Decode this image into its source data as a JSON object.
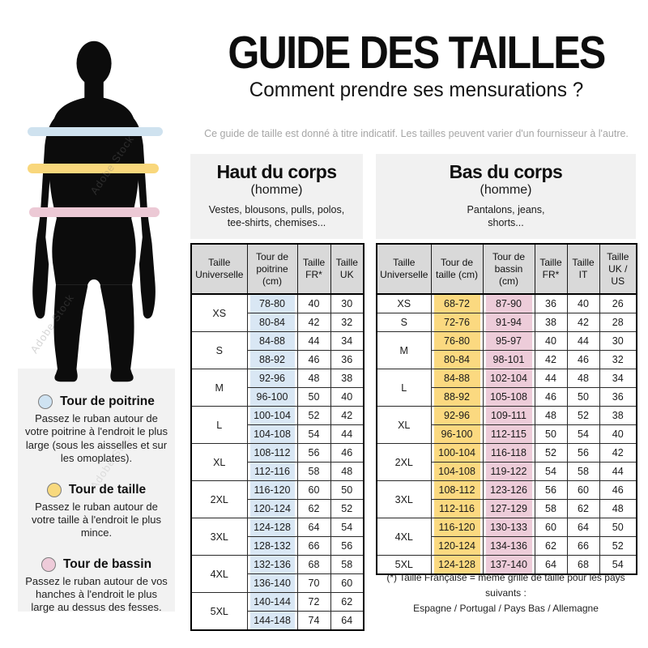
{
  "header": {
    "title": "GUIDE DES TAILLES",
    "subtitle": "Comment prendre ses mensurations ?",
    "disclaimer": "Ce guide de taille est donné à titre indicatif. Les tailles peuvent varier d'un fournisseur à l'autre."
  },
  "watermark": {
    "text": "Adobe Stock"
  },
  "colors": {
    "chest": "#cfe2ef",
    "waist": "#f9d77c",
    "hips": "#ecc9d5",
    "table_header_bg": "#d9d9d9",
    "section_bg": "#f1f1f1",
    "legend_panel_bg": "#f2f2f2"
  },
  "legend": [
    {
      "title": "Tour de poitrine",
      "description": "Passez le ruban autour de votre poitrine à l'endroit le plus large (sous les aisselles et sur les omoplates)."
    },
    {
      "title": "Tour de taille",
      "description": "Passez le ruban autour de votre taille à l'endroit le plus mince."
    },
    {
      "title": "Tour de bassin",
      "description": "Passez le ruban autour de vos hanches à l'endroit le plus large au dessus des fesses."
    }
  ],
  "upper_table": {
    "section_title": "Haut du corps",
    "section_subtitle": "(homme)",
    "section_items": "Vestes, blousons, pulls, polos,\ntee-shirts, chemises...",
    "headers": [
      "Taille Universelle",
      "Tour de poitrine (cm)",
      "Taille FR*",
      "Taille UK"
    ],
    "col_colors": [
      "chest",
      "",
      ""
    ],
    "groups": [
      {
        "size": "XS",
        "rows": [
          [
            "78-80",
            "40",
            "30"
          ],
          [
            "80-84",
            "42",
            "32"
          ]
        ]
      },
      {
        "size": "S",
        "rows": [
          [
            "84-88",
            "44",
            "34"
          ],
          [
            "88-92",
            "46",
            "36"
          ]
        ]
      },
      {
        "size": "M",
        "rows": [
          [
            "92-96",
            "48",
            "38"
          ],
          [
            "96-100",
            "50",
            "40"
          ]
        ]
      },
      {
        "size": "L",
        "rows": [
          [
            "100-104",
            "52",
            "42"
          ],
          [
            "104-108",
            "54",
            "44"
          ]
        ]
      },
      {
        "size": "XL",
        "rows": [
          [
            "108-112",
            "56",
            "46"
          ],
          [
            "112-116",
            "58",
            "48"
          ]
        ]
      },
      {
        "size": "2XL",
        "rows": [
          [
            "116-120",
            "60",
            "50"
          ],
          [
            "120-124",
            "62",
            "52"
          ]
        ]
      },
      {
        "size": "3XL",
        "rows": [
          [
            "124-128",
            "64",
            "54"
          ],
          [
            "128-132",
            "66",
            "56"
          ]
        ]
      },
      {
        "size": "4XL",
        "rows": [
          [
            "132-136",
            "68",
            "58"
          ],
          [
            "136-140",
            "70",
            "60"
          ]
        ]
      },
      {
        "size": "5XL",
        "rows": [
          [
            "140-144",
            "72",
            "62"
          ],
          [
            "144-148",
            "74",
            "64"
          ]
        ]
      }
    ]
  },
  "lower_table": {
    "section_title": "Bas du corps",
    "section_subtitle": "(homme)",
    "section_items": "Pantalons, jeans,\nshorts...",
    "headers": [
      "Taille Universelle",
      "Tour de taille (cm)",
      "Tour de bassin (cm)",
      "Taille FR*",
      "Taille IT",
      "Taille UK / US"
    ],
    "col_colors": [
      "waist",
      "hips",
      "",
      "",
      ""
    ],
    "groups": [
      {
        "size": "XS",
        "rows": [
          [
            "68-72",
            "87-90",
            "36",
            "40",
            "26"
          ]
        ]
      },
      {
        "size": "S",
        "rows": [
          [
            "72-76",
            "91-94",
            "38",
            "42",
            "28"
          ]
        ]
      },
      {
        "size": "M",
        "rows": [
          [
            "76-80",
            "95-97",
            "40",
            "44",
            "30"
          ],
          [
            "80-84",
            "98-101",
            "42",
            "46",
            "32"
          ]
        ]
      },
      {
        "size": "L",
        "rows": [
          [
            "84-88",
            "102-104",
            "44",
            "48",
            "34"
          ],
          [
            "88-92",
            "105-108",
            "46",
            "50",
            "36"
          ]
        ]
      },
      {
        "size": "XL",
        "rows": [
          [
            "92-96",
            "109-111",
            "48",
            "52",
            "38"
          ],
          [
            "96-100",
            "112-115",
            "50",
            "54",
            "40"
          ]
        ]
      },
      {
        "size": "2XL",
        "rows": [
          [
            "100-104",
            "116-118",
            "52",
            "56",
            "42"
          ],
          [
            "104-108",
            "119-122",
            "54",
            "58",
            "44"
          ]
        ]
      },
      {
        "size": "3XL",
        "rows": [
          [
            "108-112",
            "123-126",
            "56",
            "60",
            "46"
          ],
          [
            "112-116",
            "127-129",
            "58",
            "62",
            "48"
          ]
        ]
      },
      {
        "size": "4XL",
        "rows": [
          [
            "116-120",
            "130-133",
            "60",
            "64",
            "50"
          ],
          [
            "120-124",
            "134-136",
            "62",
            "66",
            "52"
          ]
        ]
      },
      {
        "size": "5XL",
        "rows": [
          [
            "124-128",
            "137-140",
            "64",
            "68",
            "54"
          ]
        ]
      }
    ]
  },
  "footnote": {
    "line1": "(*) Taille Française = même grille de taille pour les pays suivants :",
    "line2": "Espagne / Portugal / Pays Bas / Allemagne"
  }
}
